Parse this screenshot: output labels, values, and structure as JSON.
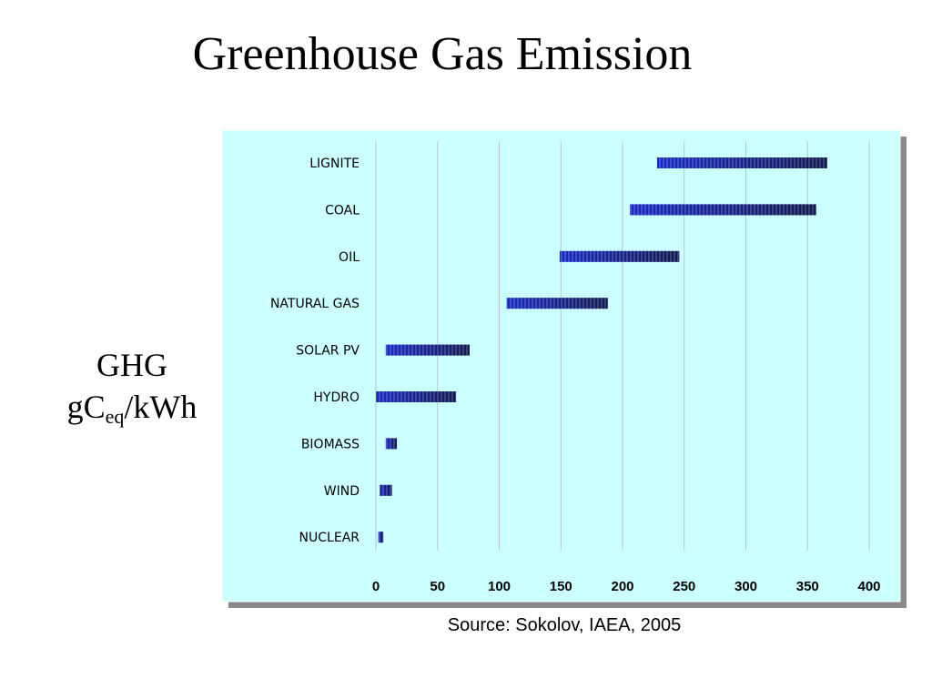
{
  "slide": {
    "title": "Greenhouse Gas Emission",
    "ylabel_line1": "GHG",
    "ylabel_base": "gC",
    "ylabel_sub": "eq",
    "ylabel_unit": "/kWh",
    "source": "Source: Sokolov, IAEA, 2005"
  },
  "colors": {
    "panel_bg": "#CCFFFF",
    "shadow": "#8A8A8A",
    "bar_light": "#2A3CFF",
    "bar_dark": "#1A1F3A"
  },
  "chart_data": {
    "type": "bar",
    "orientation": "horizontal",
    "range_bars": true,
    "categories": [
      "LIGNITE",
      "COAL",
      "OIL",
      "NATURAL GAS",
      "SOLAR PV",
      "HYDRO",
      "BIOMASS",
      "WIND",
      "NUCLEAR"
    ],
    "ranges": [
      [
        228,
        366
      ],
      [
        206,
        357
      ],
      [
        149,
        246
      ],
      [
        106,
        188
      ],
      [
        8,
        76
      ],
      [
        0,
        65
      ],
      [
        8,
        17
      ],
      [
        3,
        13
      ],
      [
        2,
        6
      ]
    ],
    "xticks": [
      0,
      50,
      100,
      150,
      200,
      250,
      300,
      350,
      400
    ],
    "xlim": [
      0,
      400
    ],
    "grid": "vertical",
    "legend": "none"
  }
}
